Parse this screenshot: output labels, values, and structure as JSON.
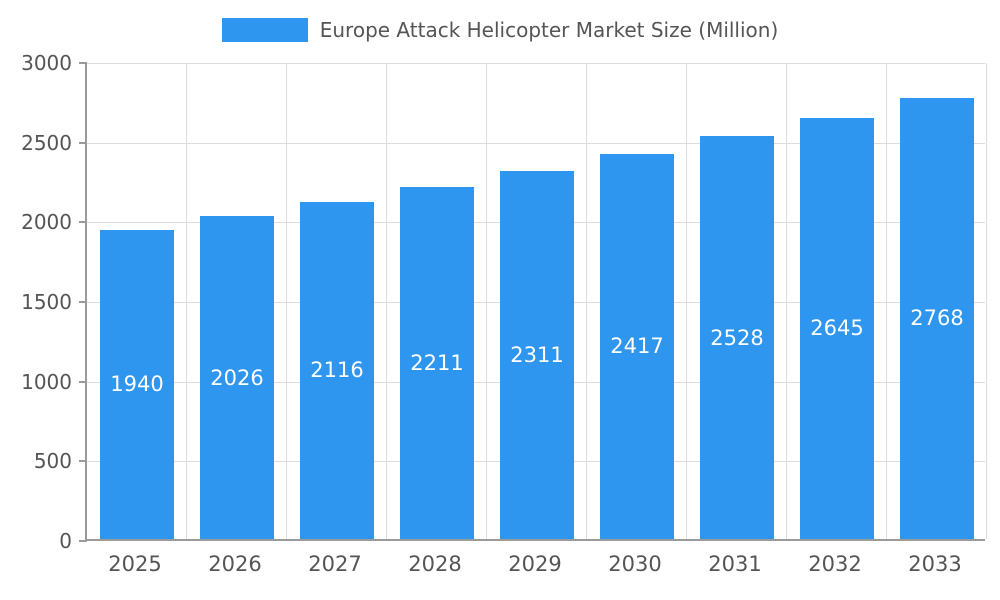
{
  "legend": {
    "title": "Europe Attack Helicopter Market Size (Million)",
    "swatch_color": "#2F96F0"
  },
  "chart_data": {
    "type": "bar",
    "title": "Europe Attack Helicopter Market Size (Million)",
    "categories": [
      "2025",
      "2026",
      "2027",
      "2028",
      "2029",
      "2030",
      "2031",
      "2032",
      "2033"
    ],
    "values": [
      1940,
      2026,
      2116,
      2211,
      2311,
      2417,
      2528,
      2645,
      2768
    ],
    "xlabel": "",
    "ylabel": "",
    "ylim": [
      0,
      3000
    ],
    "ytick_step": 500,
    "ytick_labels": [
      "0",
      "500",
      "1000",
      "1500",
      "2000",
      "2500",
      "3000"
    ],
    "bar_color": "#2F96F0",
    "bar_label_color": "#ffffff",
    "grid": true,
    "legend_position": "top"
  }
}
